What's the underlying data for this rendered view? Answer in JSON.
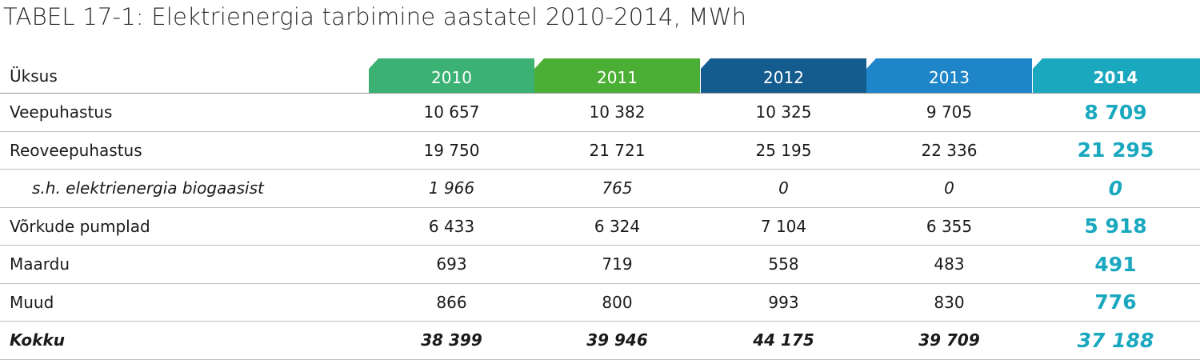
{
  "title": "TABEL 17-1: Elektrienergia tarbimine aastatel 2010-2014, MWh",
  "header": {
    "label": "Üksus",
    "years": [
      "2010",
      "2011",
      "2012",
      "2013",
      "2014"
    ],
    "colors": [
      "#3bb173",
      "#4caf35",
      "#145b8e",
      "#1e85c8",
      "#1aa8bf"
    ]
  },
  "rows": [
    {
      "label": "Veepuhastus",
      "values": [
        "10 657",
        "10 382",
        "10 325",
        "9 705",
        "8 709"
      ]
    },
    {
      "label": "Reoveepuhastus",
      "values": [
        "19 750",
        "21 721",
        "25 195",
        "22 336",
        "21 295"
      ]
    },
    {
      "label": "s.h. elektrienergia biogaasist",
      "values": [
        "1 966",
        "765",
        "0",
        "0",
        "0"
      ]
    },
    {
      "label": "Võrkude pumplad",
      "values": [
        "6 433",
        "6 324",
        "7 104",
        "6 355",
        "5 918"
      ]
    },
    {
      "label": "Maardu",
      "values": [
        "693",
        "719",
        "558",
        "483",
        "491"
      ]
    },
    {
      "label": "Muud",
      "values": [
        "866",
        "800",
        "993",
        "830",
        "776"
      ]
    },
    {
      "label": "Kokku",
      "values": [
        "38 399",
        "39 946",
        "44 175",
        "39 709",
        "37 188"
      ]
    }
  ]
}
